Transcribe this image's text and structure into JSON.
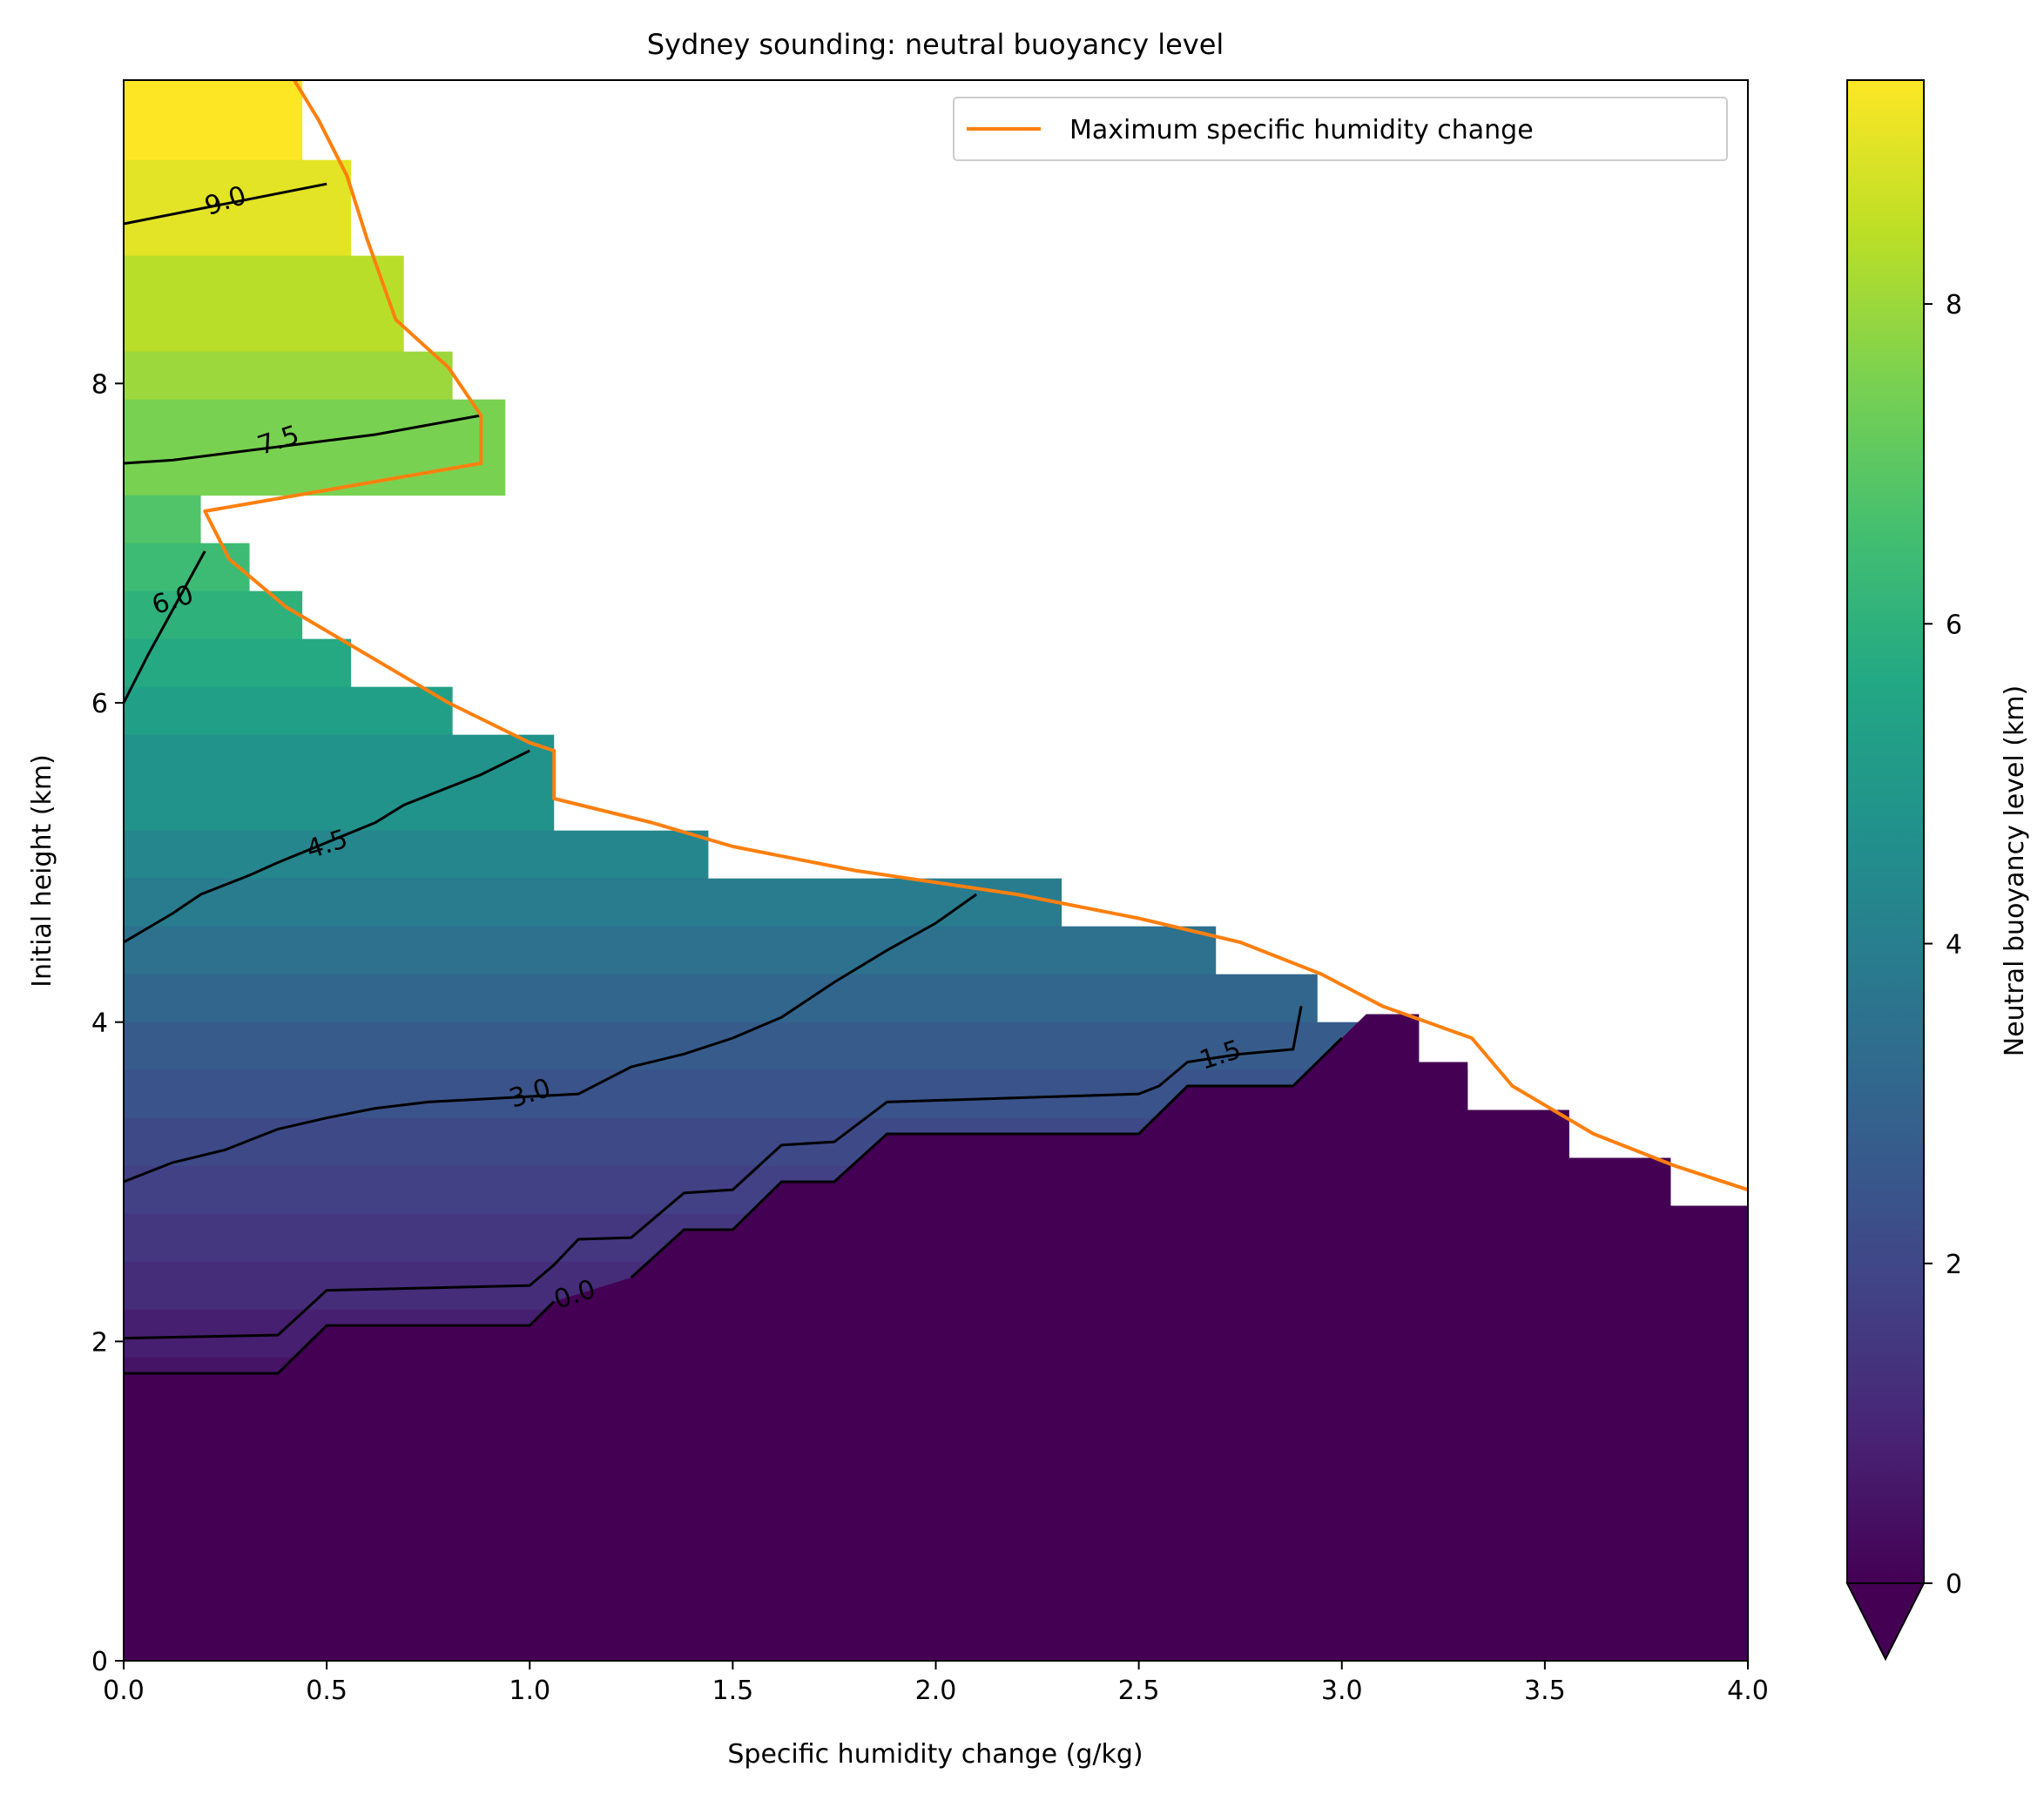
{
  "chart_data": {
    "type": "heatmap",
    "title": "Sydney sounding: neutral buoyancy level",
    "xlabel": "Specific humidity change (g/kg)",
    "ylabel": "Initial height (km)",
    "xlim": [
      0,
      4
    ],
    "ylim": [
      0,
      9.9
    ],
    "xticks": [
      {
        "value": 0.0,
        "label": "0.0"
      },
      {
        "value": 0.5,
        "label": "0.5"
      },
      {
        "value": 1.0,
        "label": "1.0"
      },
      {
        "value": 1.5,
        "label": "1.5"
      },
      {
        "value": 2.0,
        "label": "2.0"
      },
      {
        "value": 2.5,
        "label": "2.5"
      },
      {
        "value": 3.0,
        "label": "3.0"
      },
      {
        "value": 3.5,
        "label": "3.5"
      },
      {
        "value": 4.0,
        "label": "4.0"
      }
    ],
    "yticks": [
      {
        "value": 0,
        "label": "0"
      },
      {
        "value": 2,
        "label": "2"
      },
      {
        "value": 4,
        "label": "4"
      },
      {
        "value": 6,
        "label": "6"
      },
      {
        "value": 8,
        "label": "8"
      }
    ],
    "grid": false,
    "colorbar": {
      "label": "Neutral buoyancy level (km)",
      "colormap": "viridis",
      "vmin": 0,
      "vmax": 9.4,
      "extend": "min",
      "ticks": [
        {
          "value": 0,
          "label": "0"
        },
        {
          "value": 2,
          "label": "2"
        },
        {
          "value": 4,
          "label": "4"
        },
        {
          "value": 6,
          "label": "6"
        },
        {
          "value": 8,
          "label": "8"
        }
      ]
    },
    "field": {
      "description_rows": "initial height bands (km) with maximum humidity change allowed",
      "rows": [
        {
          "y0": 9.4,
          "y1": 9.9,
          "xmax": 0.44,
          "value": 9.4
        },
        {
          "y0": 8.8,
          "y1": 9.4,
          "xmax": 0.56,
          "value": 9.0
        },
        {
          "y0": 8.2,
          "y1": 8.8,
          "xmax": 0.69,
          "value": 8.4
        },
        {
          "y0": 7.9,
          "y1": 8.2,
          "xmax": 0.81,
          "value": 8.0
        },
        {
          "y0": 7.3,
          "y1": 7.9,
          "xmax": 0.94,
          "value": 7.5
        },
        {
          "y0": 7.0,
          "y1": 7.3,
          "xmax": 0.19,
          "value": 6.8
        },
        {
          "y0": 6.7,
          "y1": 7.0,
          "xmax": 0.31,
          "value": 6.4
        },
        {
          "y0": 6.4,
          "y1": 6.7,
          "xmax": 0.44,
          "value": 6.0
        },
        {
          "y0": 6.1,
          "y1": 6.4,
          "xmax": 0.56,
          "value": 5.7
        },
        {
          "y0": 5.8,
          "y1": 6.1,
          "xmax": 0.81,
          "value": 5.3
        },
        {
          "y0": 5.2,
          "y1": 5.8,
          "xmax": 1.06,
          "value": 4.8
        },
        {
          "y0": 4.9,
          "y1": 5.2,
          "xmax": 1.44,
          "value": 4.3
        },
        {
          "y0": 4.6,
          "y1": 4.9,
          "xmax": 2.31,
          "value": 3.9
        },
        {
          "y0": 4.3,
          "y1": 4.6,
          "xmax": 2.69,
          "value": 3.5
        },
        {
          "y0": 4.0,
          "y1": 4.3,
          "xmax": 2.94,
          "value": 3.1
        },
        {
          "y0": 3.7,
          "y1": 4.0,
          "xmax": 3.19,
          "value": 2.7
        },
        {
          "y0": 3.4,
          "y1": 3.7,
          "xmax": 3.31,
          "value": 2.4
        },
        {
          "y0": 3.1,
          "y1": 3.4,
          "xmax": 3.56,
          "value": 2.1
        },
        {
          "y0": 2.8,
          "y1": 3.1,
          "xmax": 3.81,
          "value": 1.8
        },
        {
          "y0": 2.5,
          "y1": 2.8,
          "xmax": 4.0,
          "value": 1.5
        },
        {
          "y0": 2.2,
          "y1": 2.5,
          "xmax": 4.0,
          "value": 1.2
        },
        {
          "y0": 1.9,
          "y1": 2.2,
          "xmax": 4.0,
          "value": 0.8
        },
        {
          "y0": 1.6,
          "y1": 1.9,
          "xmax": 4.0,
          "value": 0.5
        }
      ],
      "zero_boundary": [
        [
          0,
          1.8
        ],
        [
          0.38,
          1.8
        ],
        [
          0.5,
          2.1
        ],
        [
          1.0,
          2.1
        ],
        [
          1.06,
          2.25
        ],
        [
          1.25,
          2.4
        ],
        [
          1.38,
          2.7
        ],
        [
          1.5,
          2.7
        ],
        [
          1.62,
          3.0
        ],
        [
          1.75,
          3.0
        ],
        [
          1.88,
          3.3
        ],
        [
          2.5,
          3.3
        ],
        [
          2.62,
          3.6
        ],
        [
          2.88,
          3.6
        ],
        [
          3.0,
          3.9
        ],
        [
          3.06,
          4.05
        ],
        [
          3.19,
          4.05
        ],
        [
          3.19,
          3.75
        ],
        [
          3.31,
          3.75
        ],
        [
          3.31,
          3.45
        ],
        [
          3.56,
          3.45
        ],
        [
          3.56,
          3.15
        ],
        [
          3.81,
          3.15
        ],
        [
          3.81,
          2.85
        ],
        [
          4.0,
          2.85
        ]
      ]
    },
    "contours": [
      {
        "level": 0.0,
        "label": "0.0",
        "label_at": [
          1.11,
          2.3
        ],
        "points": [
          [
            0,
            2.02
          ],
          [
            0.38,
            2.04
          ],
          [
            0.5,
            2.32
          ],
          [
            1.0,
            2.35
          ],
          [
            1.06,
            2.48
          ],
          [
            1.12,
            2.64
          ],
          [
            1.25,
            2.65
          ],
          [
            1.38,
            2.93
          ],
          [
            1.5,
            2.95
          ],
          [
            1.62,
            3.23
          ],
          [
            1.75,
            3.25
          ],
          [
            1.88,
            3.5
          ],
          [
            2.5,
            3.55
          ],
          [
            2.55,
            3.6
          ],
          [
            2.62,
            3.75
          ],
          [
            2.75,
            3.8
          ],
          [
            2.88,
            3.83
          ],
          [
            2.9,
            4.1
          ]
        ]
      },
      {
        "level": 1.5,
        "label": "1.5",
        "label_at": [
          2.7,
          3.8
        ],
        "points": []
      },
      {
        "level": 3.0,
        "label": "3.0",
        "label_at": [
          1.0,
          3.56
        ],
        "points": [
          [
            0,
            3.0
          ],
          [
            0.12,
            3.12
          ],
          [
            0.25,
            3.2
          ],
          [
            0.38,
            3.33
          ],
          [
            0.5,
            3.4
          ],
          [
            0.62,
            3.46
          ],
          [
            0.75,
            3.5
          ],
          [
            1.12,
            3.55
          ],
          [
            1.25,
            3.72
          ],
          [
            1.38,
            3.8
          ],
          [
            1.5,
            3.9
          ],
          [
            1.62,
            4.03
          ],
          [
            1.75,
            4.25
          ],
          [
            1.88,
            4.45
          ],
          [
            2.0,
            4.62
          ],
          [
            2.1,
            4.8
          ]
        ]
      },
      {
        "level": 4.5,
        "label": "4.5",
        "label_at": [
          0.5,
          5.12
        ],
        "points": [
          [
            0,
            4.5
          ],
          [
            0.12,
            4.68
          ],
          [
            0.19,
            4.8
          ],
          [
            0.31,
            4.92
          ],
          [
            0.38,
            5.0
          ],
          [
            0.62,
            5.25
          ],
          [
            0.69,
            5.36
          ],
          [
            0.88,
            5.55
          ],
          [
            1.0,
            5.7
          ]
        ]
      },
      {
        "level": 6.0,
        "label": "6.0",
        "label_at": [
          0.12,
          6.65
        ],
        "points": [
          [
            0,
            6.0
          ],
          [
            0.06,
            6.3
          ],
          [
            0.2,
            6.95
          ]
        ]
      },
      {
        "level": 7.5,
        "label": "7.5",
        "label_at": [
          0.38,
          7.65
        ],
        "points": [
          [
            0,
            7.5
          ],
          [
            0.12,
            7.52
          ],
          [
            0.62,
            7.68
          ],
          [
            0.75,
            7.74
          ],
          [
            0.88,
            7.8
          ]
        ]
      },
      {
        "level": 9.0,
        "label": "9.0",
        "label_at": [
          0.25,
          9.15
        ],
        "points": [
          [
            0,
            9.0
          ],
          [
            0.5,
            9.25
          ]
        ]
      }
    ],
    "series": [
      {
        "name": "Maximum specific humidity change",
        "color": "#ff7f0e",
        "x": [
          0.42,
          0.48,
          0.55,
          0.6,
          0.67,
          0.8,
          0.88,
          0.88,
          0.2,
          0.26,
          0.4,
          0.6,
          0.8,
          1.0,
          1.06,
          1.06,
          1.3,
          1.5,
          1.8,
          2.2,
          2.5,
          2.75,
          2.95,
          3.1,
          3.32,
          3.42,
          3.62,
          3.82,
          4.0
        ],
        "y": [
          9.9,
          9.65,
          9.3,
          8.9,
          8.4,
          8.1,
          7.8,
          7.5,
          7.2,
          6.9,
          6.6,
          6.3,
          6.0,
          5.75,
          5.7,
          5.4,
          5.25,
          5.1,
          4.95,
          4.8,
          4.65,
          4.5,
          4.3,
          4.1,
          3.9,
          3.6,
          3.3,
          3.1,
          2.95
        ]
      }
    ],
    "legend": {
      "position": "top-right",
      "entries": [
        "Maximum specific humidity change"
      ]
    }
  }
}
